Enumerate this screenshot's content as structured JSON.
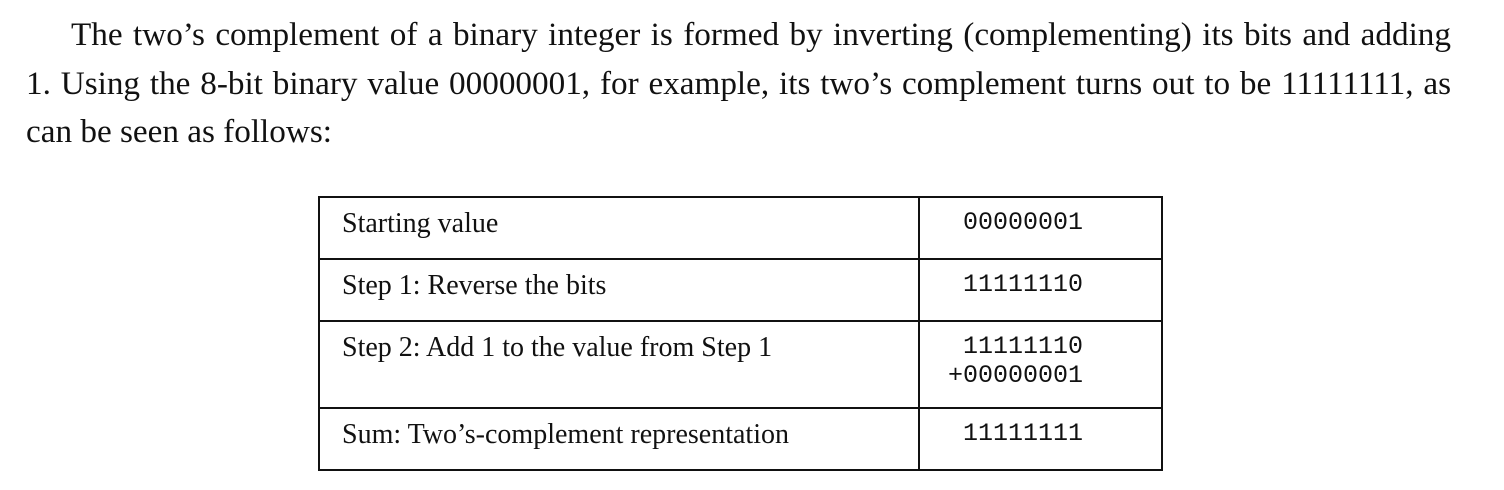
{
  "paragraph": "The two’s complement of a binary integer is formed by inverting (complementing) its bits and adding 1. Using the 8-bit binary value 00000001, for example, its two’s complement turns out to be 11111111, as can be seen as follows:",
  "table": {
    "rows": [
      {
        "label": "Starting value",
        "value": "00000001"
      },
      {
        "label": "Step 1: Reverse the bits",
        "value": "11111110"
      },
      {
        "label": "Step 2: Add 1 to the value from Step 1",
        "value_line1": "11111110",
        "value_line2": "+00000001"
      },
      {
        "label": "Sum: Two’s-complement representation",
        "value": "11111111"
      }
    ]
  }
}
